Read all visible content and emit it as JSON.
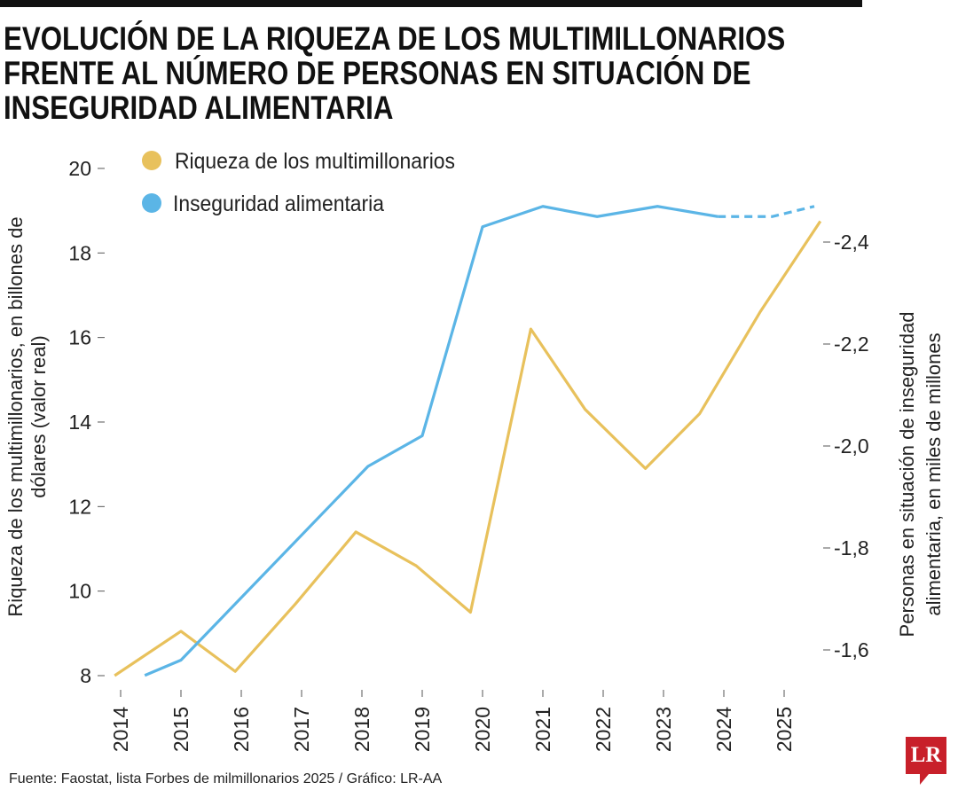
{
  "title": "EVOLUCIÓN DE LA RIQUEZA DE LOS MULTIMILLONARIOS FRENTE AL NÚMERO DE PERSONAS EN SITUACIÓN DE INSEGURIDAD ALIMENTARIA",
  "source": "Fuente: Faostat, lista Forbes de milmillonarios 2025 / Gráfico: LR-AA",
  "logo": "LR",
  "chart_data": {
    "type": "line",
    "title": "EVOLUCIÓN DE LA RIQUEZA DE LOS MULTIMILLONARIOS FRENTE AL NÚMERO DE PERSONAS EN SITUACIÓN DE INSEGURIDAD ALIMENTARIA",
    "ylabel": "Riqueza de los multimillonarios, en billones de dólares (valor real)",
    "y2label": "Personas en situación de inseguridad alimentaria, en miles de millones",
    "x_ticks": [
      "2014",
      "2015",
      "2016",
      "2017",
      "2018",
      "2019",
      "2020",
      "2021",
      "2022",
      "2023",
      "2024",
      "2025"
    ],
    "ylim": [
      8,
      20
    ],
    "y_ticks": [
      "20",
      "18",
      "16",
      "14",
      "12",
      "10",
      "8"
    ],
    "y_tick_values": [
      20,
      18,
      16,
      14,
      12,
      10,
      8
    ],
    "y2lim": [
      -1.55,
      -2.48
    ],
    "y2_ticks": [
      "-2,4",
      "-2,2",
      "-2,0",
      "-1,8",
      "-1,6"
    ],
    "y2_tick_values": [
      -2.4,
      -2.2,
      -2.0,
      -1.8,
      -1.6
    ],
    "grid": false,
    "legend": "top-left",
    "series": [
      {
        "name": "Riqueza de los multimillonarios",
        "axis": "left",
        "color": "#e8c15c",
        "x": [
          2013.9,
          2015.0,
          2015.9,
          2016.9,
          2017.9,
          2018.9,
          2019.8,
          2020.8,
          2021.7,
          2022.7,
          2023.6,
          2024.6,
          2025.6
        ],
        "values": [
          8.0,
          9.05,
          8.1,
          9.7,
          11.4,
          10.6,
          9.5,
          16.2,
          14.3,
          12.9,
          14.2,
          16.6,
          18.75
        ]
      },
      {
        "name": "Inseguridad alimentaria",
        "axis": "right",
        "color": "#5bb5e6",
        "x": [
          2014.4,
          2015.0,
          2018.1,
          2019.0,
          2020.0,
          2021.0,
          2021.9,
          2022.9,
          2023.9
        ],
        "values": [
          -1.55,
          -1.58,
          -1.96,
          -2.02,
          -2.43,
          -2.47,
          -2.45,
          -2.47,
          -2.45
        ],
        "projection_x": [
          2023.9,
          2024.1,
          2024.8,
          2025.5
        ],
        "projection_values": [
          -2.45,
          -2.45,
          -2.45,
          -2.47
        ]
      }
    ]
  }
}
